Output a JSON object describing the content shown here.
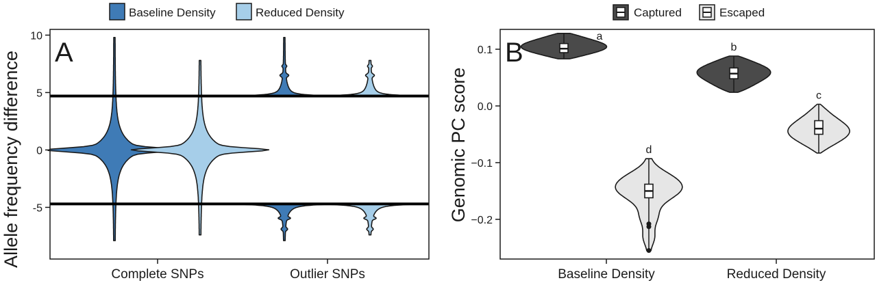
{
  "colors": {
    "baseline": "#3f7bb6",
    "reduced": "#a6cee9",
    "captured": "#4a4a4a",
    "escaped": "#e6e6e6",
    "outline": "#1a1a1a",
    "threshold": "#000000"
  },
  "chart_data": [
    {
      "type": "violin",
      "panel_label": "A",
      "ylabel": "Allele frequency difference",
      "xlabel": "",
      "ylim": [
        -9.5,
        10.5
      ],
      "yticks": [
        -5,
        0,
        5,
        10
      ],
      "yticklabels": [
        "-5",
        "0",
        "5",
        "10"
      ],
      "categories": [
        "Complete SNPs",
        "Outlier SNPs"
      ],
      "legend": {
        "placement": "top-center",
        "entries": [
          {
            "name": "Baseline Density",
            "color": "#3f7bb6"
          },
          {
            "name": "Reduced Density",
            "color": "#a6cee9"
          }
        ]
      },
      "thresholds": [
        4.7,
        -4.7
      ],
      "series": [
        {
          "name": "Baseline Density",
          "category": "Complete SNPs",
          "part": "full",
          "min": -7.9,
          "max": 9.8,
          "center": 0
        },
        {
          "name": "Reduced Density",
          "category": "Complete SNPs",
          "part": "full",
          "min": -7.4,
          "max": 7.8,
          "center": 0
        },
        {
          "name": "Baseline Density",
          "category": "Outlier SNPs",
          "part": "upper",
          "min": 4.7,
          "max": 9.8
        },
        {
          "name": "Reduced Density",
          "category": "Outlier SNPs",
          "part": "upper",
          "min": 4.7,
          "max": 7.8
        },
        {
          "name": "Baseline Density",
          "category": "Outlier SNPs",
          "part": "lower",
          "min": -7.9,
          "max": -4.7
        },
        {
          "name": "Reduced Density",
          "category": "Outlier SNPs",
          "part": "lower",
          "min": -7.4,
          "max": -4.7
        }
      ],
      "grid": false
    },
    {
      "type": "violin",
      "panel_label": "B",
      "ylabel": "Genomic PC score",
      "xlabel": "",
      "ylim": [
        -0.27,
        0.135
      ],
      "yticks": [
        0.1,
        0.0,
        -0.1,
        -0.2
      ],
      "yticklabels": [
        "0.1",
        "0.0",
        "−0.1",
        "−0.2"
      ],
      "categories": [
        "Baseline Density",
        "Reduced Density"
      ],
      "legend": {
        "placement": "top-right",
        "entries": [
          {
            "name": "Captured",
            "color": "#4a4a4a"
          },
          {
            "name": "Escaped",
            "color": "#e6e6e6"
          }
        ]
      },
      "series": [
        {
          "name": "Captured",
          "category": "Baseline Density",
          "letter": "a",
          "min": 0.083,
          "max": 0.128,
          "q1": 0.094,
          "median": 0.101,
          "q3": 0.11,
          "outliers": []
        },
        {
          "name": "Escaped",
          "category": "Baseline Density",
          "letter": "d",
          "min": -0.255,
          "max": -0.093,
          "q1": -0.162,
          "median": -0.15,
          "q3": -0.138,
          "outliers": [
            -0.208,
            -0.213,
            -0.255
          ]
        },
        {
          "name": "Captured",
          "category": "Reduced Density",
          "letter": "b",
          "min": 0.024,
          "max": 0.088,
          "q1": 0.048,
          "median": 0.057,
          "q3": 0.067,
          "outliers": []
        },
        {
          "name": "Escaped",
          "category": "Reduced Density",
          "letter": "c",
          "min": -0.083,
          "max": 0.003,
          "q1": -0.05,
          "median": -0.04,
          "q3": -0.026,
          "outliers": []
        }
      ],
      "grid": false
    }
  ]
}
